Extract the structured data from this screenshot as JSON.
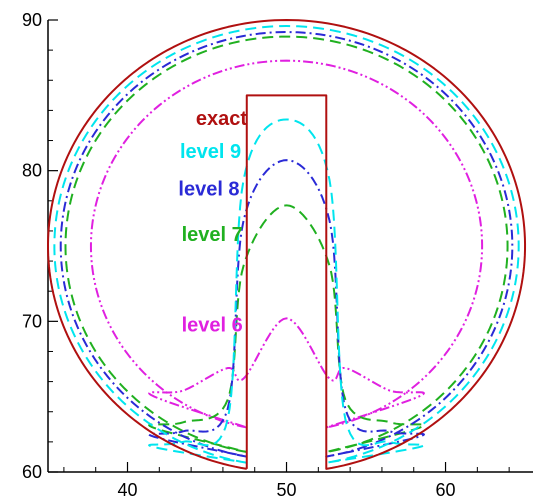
{
  "chart_data": {
    "type": "line",
    "title": "",
    "xlabel": "",
    "ylabel": "",
    "xlim": [
      35,
      65.5
    ],
    "ylim": [
      60,
      90
    ],
    "xticks": [
      40,
      50,
      60
    ],
    "xtick_labels": [
      "40",
      "50",
      "60"
    ],
    "yticks": [
      60,
      70,
      80,
      90
    ],
    "ytick_labels": [
      "60",
      "70",
      "80",
      "90"
    ],
    "minor_x_step": 2,
    "minor_y_step": 2,
    "grid": false,
    "disk": {
      "center": [
        50,
        75
      ],
      "radius": 15,
      "slot_x": [
        47.5,
        52.5
      ],
      "slot_top": 85
    },
    "series": [
      {
        "name": "exact",
        "color": "#b01010",
        "dash": "solid",
        "label_pos": [
          44.3,
          83.5
        ],
        "outer_radius": 15,
        "inner_bump": [
          82.9,
          85.0
        ]
      },
      {
        "name": "level 9",
        "color": "#00e5ee",
        "dash": "dash",
        "label_pos": [
          43.3,
          81.3
        ],
        "outer_radius": 14.6,
        "inner_bump": [
          83.4,
          62.0
        ]
      },
      {
        "name": "level 8",
        "color": "#2a2ad6",
        "dash": "dashdot",
        "label_pos": [
          43.2,
          78.8
        ],
        "outer_radius": 14.2,
        "inner_bump": [
          80.7,
          62.7
        ]
      },
      {
        "name": "level 7",
        "color": "#20b020",
        "dash": "dash",
        "label_pos": [
          43.4,
          75.8
        ],
        "outer_radius": 13.9,
        "inner_bump": [
          77.7,
          63.3
        ]
      },
      {
        "name": "level 6",
        "color": "#e020e0",
        "dash": "dashdotdot",
        "label_pos": [
          43.4,
          69.8
        ],
        "outer_radius": 12.3,
        "inner_bump": [
          70.2,
          65.4
        ]
      }
    ]
  }
}
